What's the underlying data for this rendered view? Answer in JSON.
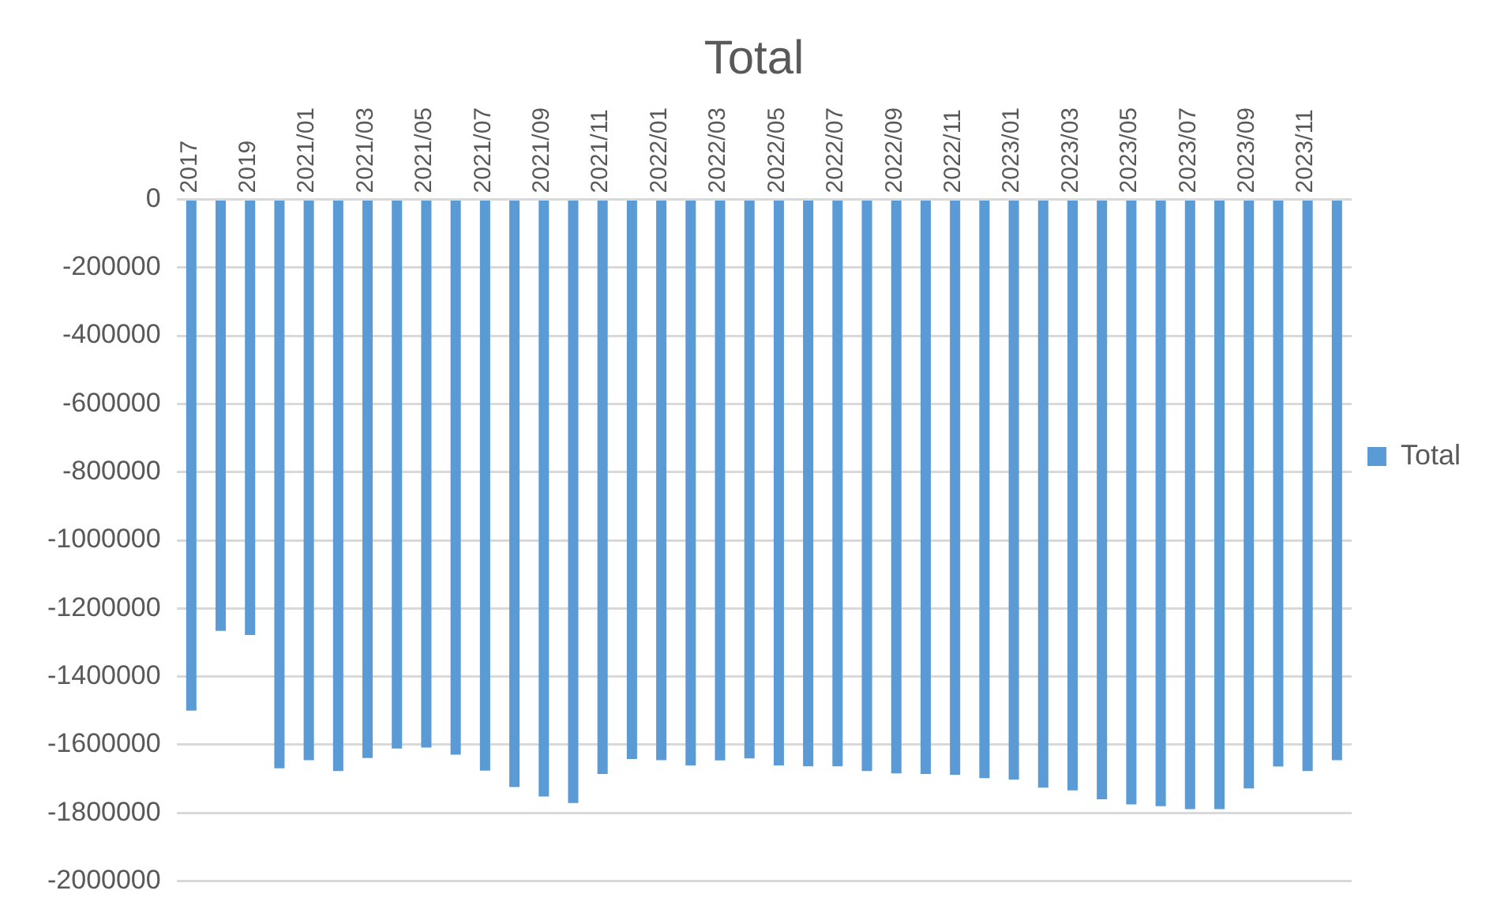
{
  "chart_data": {
    "type": "bar",
    "title": "Total",
    "categories": [
      "2017",
      null,
      "2019",
      null,
      "2021/01",
      null,
      "2021/03",
      null,
      "2021/05",
      null,
      "2021/07",
      null,
      "2021/09",
      null,
      "2021/11",
      null,
      "2022/01",
      null,
      "2022/03",
      null,
      "2022/05",
      null,
      "2022/07",
      null,
      "2022/09",
      null,
      "2022/11",
      null,
      "2023/01",
      null,
      "2023/03",
      null,
      "2023/05",
      null,
      "2023/07",
      null,
      "2023/09",
      null,
      "2023/11",
      null
    ],
    "series": [
      {
        "name": "Total",
        "color": "#5b9bd5",
        "values": [
          -1500000,
          -1266000,
          -1278000,
          -1669000,
          -1645000,
          -1677000,
          -1639000,
          -1611000,
          -1608000,
          -1629000,
          -1676000,
          -1724000,
          -1752000,
          -1771000,
          -1686000,
          -1642000,
          -1645000,
          -1661000,
          -1646000,
          -1640000,
          -1661000,
          -1663000,
          -1663000,
          -1677000,
          -1684000,
          -1686000,
          -1688000,
          -1698000,
          -1702000,
          -1726000,
          -1734000,
          -1760000,
          -1775000,
          -1780000,
          -1789000,
          -1789000,
          -1728000,
          -1664000,
          -1677000,
          -1645000
        ]
      }
    ],
    "ylim": [
      -2000000,
      0
    ],
    "yticks": [
      -2000000,
      -1800000,
      -1600000,
      -1400000,
      -1200000,
      -1000000,
      -800000,
      -600000,
      -400000,
      -200000,
      0
    ],
    "grid": "y",
    "legend": "right"
  }
}
